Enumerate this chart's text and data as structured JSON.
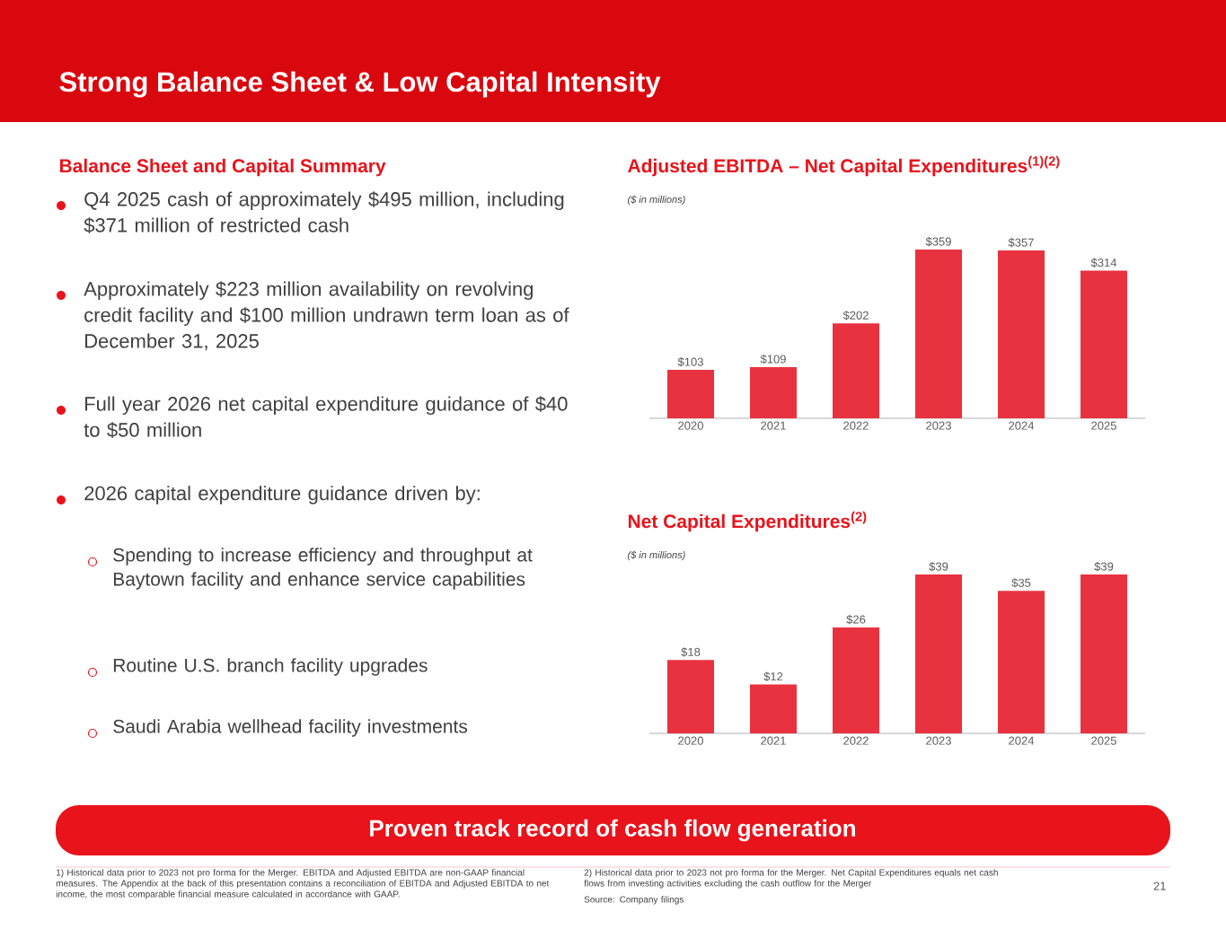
{
  "chart_data": [
    {
      "type": "other",
      "title": "Strong Balance Sheet & Low Capital Intensity",
      "subtitle": "Balance Sheet and Capital Summary",
      "annotations": [
        "Q4 2025 cash of approximately $495 million, including $371 million of restricted cash",
        "Approximately $223 million availability on revolving credit facility and $100 million undrawn term loan as of December 31, 2025",
        "Full year 2026 net capital expenditure guidance of $40 to $50 million",
        "2026 capital expenditure guidance driven by:",
        "Spending to increase efficiency and throughput at Baytown facility and enhance service capabilities",
        "Routine U.S. branch facility upgrades",
        "Saudi Arabia wellhead facility investments",
        "Proven track record of cash flow generation",
        "1) Historical data prior to 2023 not pro forma for the Merger. EBITDA and Adjusted EBITDA are non-GAAP financial measures. The Appendix at the back of this presentation contains a reconciliation of EBITDA and Adjusted EBITDA to net income, the most comparable financial measure calculated in accordance with GAAP.",
        "2) Historical data prior to 2023 not pro forma for the Merger. Net Capital Expenditures equals net cash flows from investing activities excluding the cash outflow for the Merger",
        "Source: Company filings",
        "21"
      ]
    },
    {
      "type": "bar",
      "title": "Adjusted EBITDA – Net Capital Expenditures$^{(1)(2)}$",
      "subtitle": "($ in millions)",
      "categories": [
        "2020",
        "2021",
        "2022",
        "2023",
        "2024",
        "2025"
      ],
      "values": [
        103,
        109,
        202,
        359,
        357,
        314
      ],
      "color": "#e8323f",
      "value_labels": [
        "$103",
        "$109",
        "$202",
        "$359",
        "$357",
        "$314"
      ]
    },
    {
      "type": "bar",
      "title": "Net Capital Expenditures$^{(2)}$",
      "subtitle": "($ in millions)",
      "categories": [
        "2020",
        "2021",
        "2022",
        "2023",
        "2024",
        "2025"
      ],
      "values": [
        18,
        12,
        26,
        39,
        35,
        39
      ],
      "color": "#e8323f",
      "value_labels": [
        "$18",
        "$12",
        "$26",
        "$39",
        "$35",
        "$39"
      ]
    }
  ]
}
